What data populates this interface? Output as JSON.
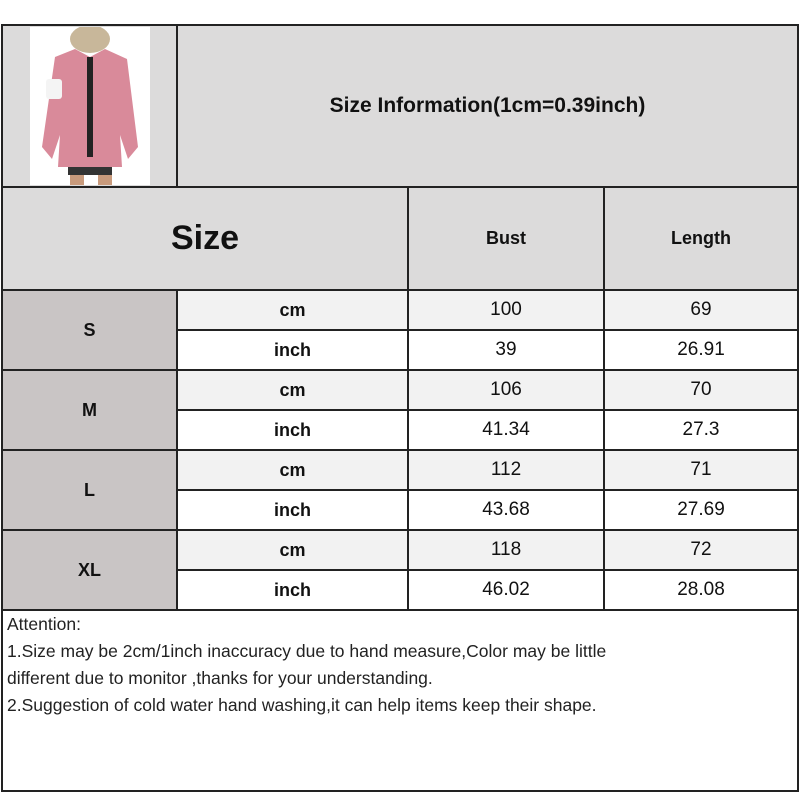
{
  "title": "Size Information(1cm=0.39inch)",
  "product_image": "pink-corduroy-shirt-photo",
  "header": {
    "size": "Size",
    "columns": [
      "Bust",
      "Length"
    ]
  },
  "rows": [
    {
      "size": "S",
      "cm_label": "cm",
      "inch_label": "inch",
      "cm": [
        "100",
        "69"
      ],
      "inch": [
        "39",
        "26.91"
      ]
    },
    {
      "size": "M",
      "cm_label": "cm",
      "inch_label": "inch",
      "cm": [
        "106",
        "70"
      ],
      "inch": [
        "41.34",
        "27.3"
      ]
    },
    {
      "size": "L",
      "cm_label": "cm",
      "inch_label": "inch",
      "cm": [
        "112",
        "71"
      ],
      "inch": [
        "43.68",
        "27.69"
      ]
    },
    {
      "size": "XL",
      "cm_label": "cm",
      "inch_label": "inch",
      "cm": [
        "118",
        "72"
      ],
      "inch": [
        "46.02",
        "28.08"
      ]
    }
  ],
  "notes": {
    "heading": "Attention:",
    "lines": [
      "1.Size may be 2cm/1inch inaccuracy due to hand measure,Color may be little",
      "different due to monitor ,thanks for your understanding.",
      "2.Suggestion of cold water hand washing,it can help items keep their shape."
    ]
  },
  "colors": {
    "header_bg": "#dcdbdb",
    "size_bg": "#c9c5c5",
    "cm_row_bg": "#f2f2f2",
    "inch_row_bg": "#ffffff",
    "border": "#222222"
  }
}
